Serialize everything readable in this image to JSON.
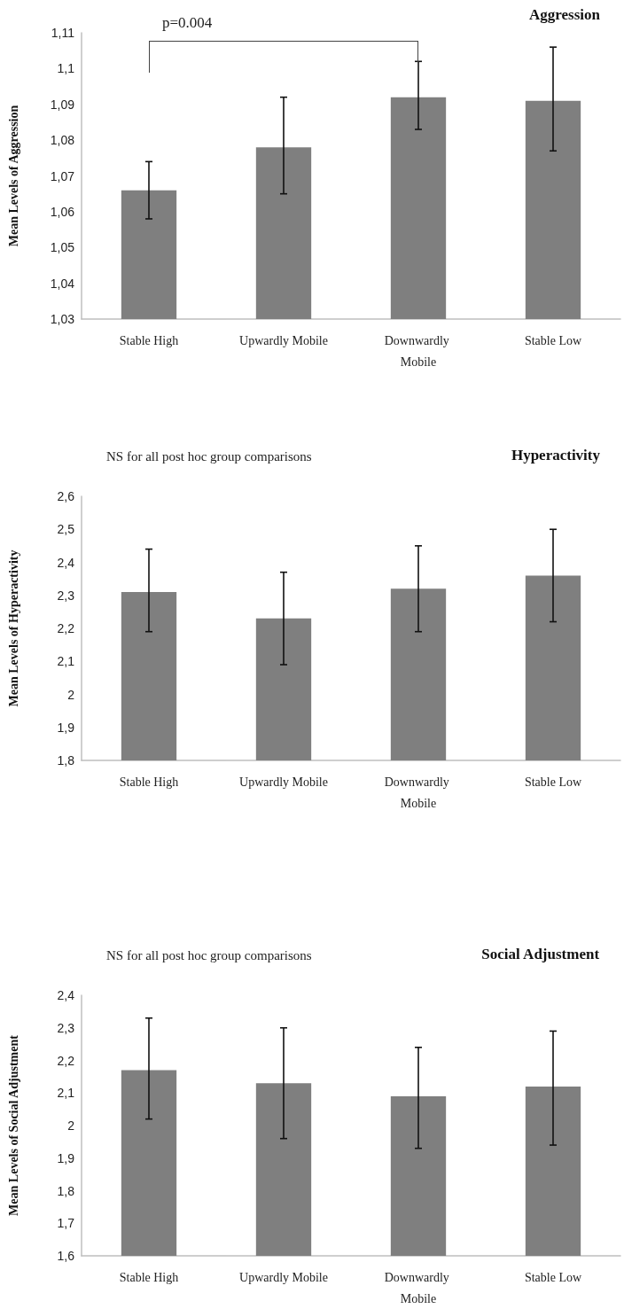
{
  "chart_data": [
    {
      "type": "bar",
      "title": "Aggression",
      "ylabel": "Mean Levels of Aggression",
      "categories": [
        "Stable High",
        "Upwardly Mobile",
        "Downwardly Mobile",
        "Stable Low"
      ],
      "color": "#7f7f7f",
      "values": [
        1.066,
        1.078,
        1.092,
        1.091
      ],
      "errors": [
        [
          1.058,
          1.074
        ],
        [
          1.065,
          1.092
        ],
        [
          1.083,
          1.102
        ],
        [
          1.077,
          1.106
        ]
      ],
      "ylim": [
        1.03,
        1.11
      ],
      "yticks": [
        {
          "value": 1.03,
          "label": "1,03"
        },
        {
          "value": 1.04,
          "label": "1,04"
        },
        {
          "value": 1.05,
          "label": "1,05"
        },
        {
          "value": 1.06,
          "label": "1,06"
        },
        {
          "value": 1.07,
          "label": "1,07"
        },
        {
          "value": 1.08,
          "label": "1,08"
        },
        {
          "value": 1.09,
          "label": "1,09"
        },
        {
          "value": 1.1,
          "label": "1,1"
        },
        {
          "value": 1.11,
          "label": "1,11"
        }
      ],
      "annotations": [
        "p=0.004"
      ]
    },
    {
      "type": "bar",
      "title": "Hyperactivity",
      "subtitle": "NS for all post hoc group comparisons",
      "ylabel": "Mean Levels of Hyperactivity",
      "categories": [
        "Stable High",
        "Upwardly Mobile",
        "Downwardly Mobile",
        "Stable Low"
      ],
      "color": "#7f7f7f",
      "values": [
        2.31,
        2.23,
        2.32,
        2.36
      ],
      "errors": [
        [
          2.19,
          2.44
        ],
        [
          2.09,
          2.37
        ],
        [
          2.19,
          2.45
        ],
        [
          2.22,
          2.5
        ]
      ],
      "ylim": [
        1.8,
        2.6
      ],
      "yticks": [
        {
          "value": 1.8,
          "label": "1,8"
        },
        {
          "value": 1.9,
          "label": "1,9"
        },
        2,
        {
          "value": 2.1,
          "label": "2,1"
        },
        {
          "value": 2.2,
          "label": "2,2"
        },
        {
          "value": 2.3,
          "label": "2,3"
        },
        {
          "value": 2.4,
          "label": "2,4"
        },
        {
          "value": 2.5,
          "label": "2,5"
        },
        {
          "value": 2.6,
          "label": "2,6"
        }
      ]
    },
    {
      "type": "bar",
      "title": "Social Adjustment",
      "subtitle": "NS for all post hoc group comparisons",
      "ylabel": "Mean Levels of Social Adjustment",
      "categories": [
        "Stable High",
        "Upwardly Mobile",
        "Downwardly Mobile",
        "Stable Low"
      ],
      "color": "#7f7f7f",
      "values": [
        2.17,
        2.13,
        2.09,
        2.12
      ],
      "errors": [
        [
          2.02,
          2.33
        ],
        [
          1.96,
          2.3
        ],
        [
          1.93,
          2.24
        ],
        [
          1.94,
          2.29
        ]
      ],
      "ylim": [
        1.6,
        2.4
      ],
      "yticks": [
        {
          "value": 1.6,
          "label": "1,6"
        },
        {
          "value": 1.7,
          "label": "1,7"
        },
        {
          "value": 1.8,
          "label": "1,8"
        },
        {
          "value": 1.9,
          "label": "1,9"
        },
        2,
        {
          "value": 2.1,
          "label": "2,1"
        },
        {
          "value": 2.2,
          "label": "2,2"
        },
        {
          "value": 2.3,
          "label": "2,3"
        },
        {
          "value": 2.4,
          "label": "2,4"
        }
      ]
    }
  ]
}
